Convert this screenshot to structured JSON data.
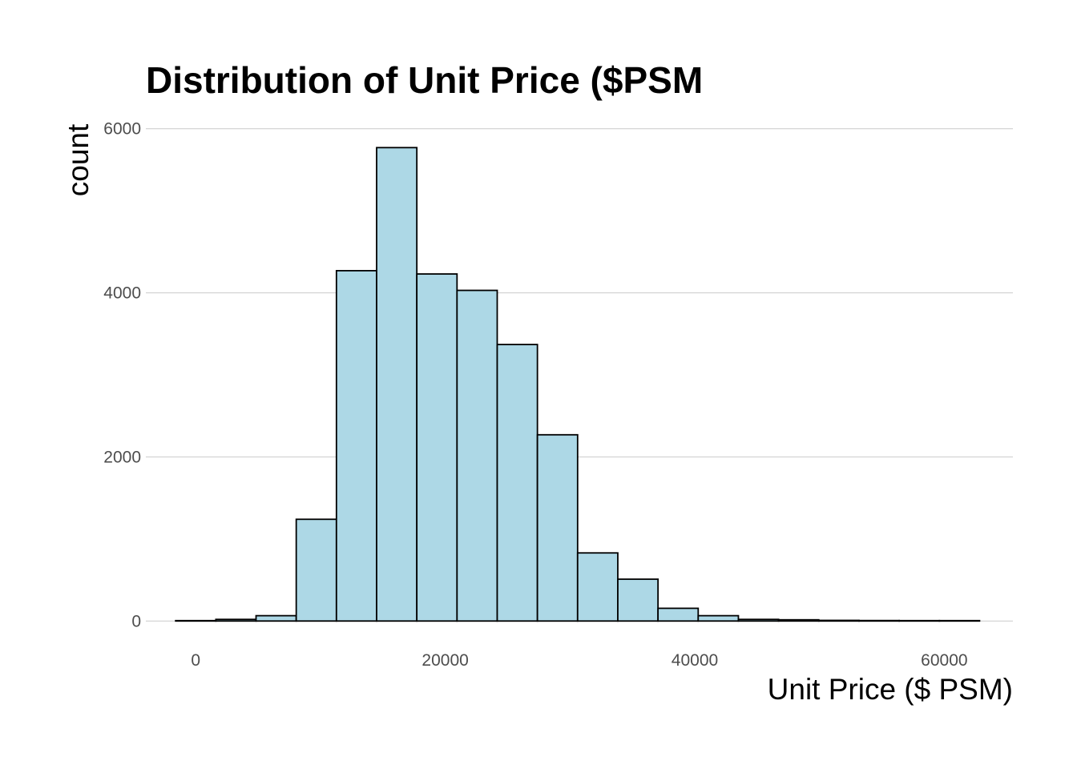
{
  "chart_data": {
    "type": "bar",
    "title": "Distribution of Unit Price ($PSM",
    "xlabel": "Unit Price ($ PSM)",
    "ylabel": "count",
    "xlim": [
      -4000,
      65500
    ],
    "ylim": [
      -300,
      6300
    ],
    "x_ticks": [
      0,
      20000,
      40000,
      60000
    ],
    "y_ticks": [
      0,
      2000,
      4000,
      6000
    ],
    "x_tick_labels": [
      "0",
      "20000",
      "40000",
      "60000"
    ],
    "y_tick_labels": [
      "0",
      "2000",
      "4000",
      "6000"
    ],
    "grid": "horizontal major lines",
    "legend": "none",
    "bin_width": 3222,
    "bins": [
      {
        "x0": -1611,
        "x1": 1611,
        "count": 5
      },
      {
        "x0": 1611,
        "x1": 4833,
        "count": 20
      },
      {
        "x0": 4833,
        "x1": 8055,
        "count": 65
      },
      {
        "x0": 8055,
        "x1": 11277,
        "count": 1240
      },
      {
        "x0": 11277,
        "x1": 14499,
        "count": 4270
      },
      {
        "x0": 14499,
        "x1": 17721,
        "count": 5770
      },
      {
        "x0": 17721,
        "x1": 20943,
        "count": 4230
      },
      {
        "x0": 20943,
        "x1": 24165,
        "count": 4030
      },
      {
        "x0": 24165,
        "x1": 27387,
        "count": 3370
      },
      {
        "x0": 27387,
        "x1": 30609,
        "count": 2270
      },
      {
        "x0": 30609,
        "x1": 33831,
        "count": 830
      },
      {
        "x0": 33831,
        "x1": 37053,
        "count": 510
      },
      {
        "x0": 37053,
        "x1": 40275,
        "count": 155
      },
      {
        "x0": 40275,
        "x1": 43497,
        "count": 65
      },
      {
        "x0": 43497,
        "x1": 46719,
        "count": 20
      },
      {
        "x0": 46719,
        "x1": 49941,
        "count": 15
      },
      {
        "x0": 49941,
        "x1": 53163,
        "count": 8
      },
      {
        "x0": 53163,
        "x1": 56385,
        "count": 6
      },
      {
        "x0": 56385,
        "x1": 59607,
        "count": 5
      },
      {
        "x0": 59607,
        "x1": 62829,
        "count": 5
      }
    ],
    "colors": {
      "bar_fill": "#add8e6",
      "bar_stroke": "#000000",
      "grid": "#d0d0d0",
      "tick_text": "#4d4d4d"
    }
  }
}
